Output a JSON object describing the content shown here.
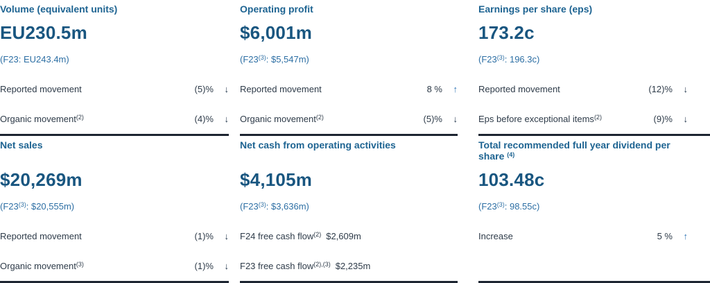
{
  "colors": {
    "title_blue": "#1e6492",
    "value_navy": "#195680",
    "prior_blue": "#2d6fa4",
    "row_text": "#2e3b49",
    "arrow_up": "#2e74b5",
    "arrow_down": "#23374d",
    "divider": "#1d2531"
  },
  "panels": [
    {
      "title": "Volume (equivalent units)",
      "title_sup": "",
      "value": "EU230.5m",
      "prior_pre": "(F23",
      "prior_sup": "",
      "prior_post": ": EU243.4m)",
      "rows": [
        {
          "label": "Reported movement",
          "sup": "",
          "value": "(5)%",
          "arrow": "↓"
        },
        {
          "label": "Organic movement",
          "sup": "(2)",
          "value": "(4)%",
          "arrow": "↓"
        }
      ]
    },
    {
      "title": "Operating profit",
      "title_sup": "",
      "value": "$6,001m",
      "prior_pre": "(F23",
      "prior_sup": "(3)",
      "prior_post": ": $5,547m)",
      "rows": [
        {
          "label": "Reported movement",
          "sup": "",
          "value": "8 %",
          "arrow": "↑"
        },
        {
          "label": "Organic movement",
          "sup": "(2)",
          "value": "(5)%",
          "arrow": "↓"
        }
      ]
    },
    {
      "title": "Earnings per share (eps)",
      "title_sup": "",
      "value": "173.2c",
      "prior_pre": "(F23",
      "prior_sup": "(3)",
      "prior_post": ": 196.3c)",
      "rows": [
        {
          "label": "Reported movement",
          "sup": "",
          "value": "(12)%",
          "arrow": "↓"
        },
        {
          "label": "Eps before exceptional items",
          "sup": "(2)",
          "value": "(9)%",
          "arrow": "↓"
        }
      ]
    },
    {
      "title": "Net sales",
      "title_sup": "",
      "value": "$20,269m",
      "prior_pre": "(F23",
      "prior_sup": "(3)",
      "prior_post": ": $20,555m)",
      "rows": [
        {
          "label": "Reported movement",
          "sup": "",
          "value": "(1)%",
          "arrow": "↓"
        },
        {
          "label": "Organic movement",
          "sup": "(3)",
          "value": "(1)%",
          "arrow": "↓"
        }
      ]
    },
    {
      "title": "Net cash from operating activities",
      "title_sup": "",
      "value": "$4,105m",
      "prior_pre": "(F23",
      "prior_sup": "(3)",
      "prior_post": ": $3,636m)",
      "rows": [
        {
          "label": "F24 free cash flow",
          "sup": "(2)",
          "value": "$2,609m",
          "arrow": ""
        },
        {
          "label": "F23 free cash flow",
          "sup": "(2),(3)",
          "value": "$2,235m",
          "arrow": ""
        }
      ]
    },
    {
      "title": "Total recommended full year dividend per share ",
      "title_sup": "(4)",
      "value": "103.48c",
      "prior_pre": "(F23",
      "prior_sup": "(3)",
      "prior_post": ": 98.55c)",
      "rows": [
        {
          "label": "Increase",
          "sup": "",
          "value": "5 %",
          "arrow": "↑"
        }
      ]
    }
  ]
}
